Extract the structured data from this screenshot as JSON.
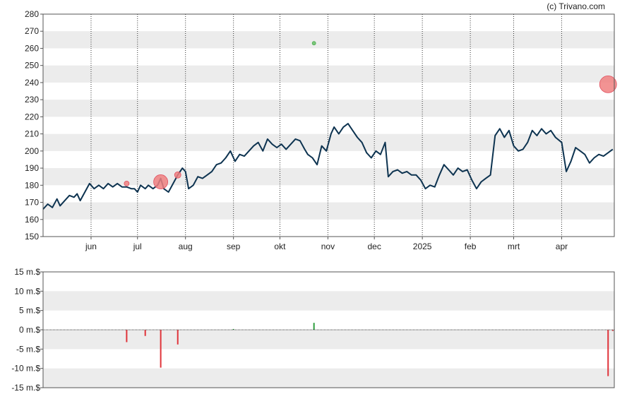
{
  "copyright": "(c) Trivano.com",
  "chart_data": [
    {
      "type": "line",
      "series_color": "#0d3350",
      "ylim": [
        150,
        280
      ],
      "y_ticks": [
        150,
        160,
        170,
        180,
        190,
        200,
        210,
        220,
        230,
        240,
        250,
        260,
        270,
        280
      ],
      "grid": "alternating horizontal bands, dotted vertical month lines",
      "x_range": [
        "2024-05-01",
        "2025-05-05"
      ],
      "x_ticks": [
        {
          "date": "2024-06-01",
          "label": "jun"
        },
        {
          "date": "2024-07-01",
          "label": "jul"
        },
        {
          "date": "2024-08-01",
          "label": "aug"
        },
        {
          "date": "2024-09-01",
          "label": "sep"
        },
        {
          "date": "2024-10-01",
          "label": "okt"
        },
        {
          "date": "2024-11-01",
          "label": "nov"
        },
        {
          "date": "2024-12-01",
          "label": "dec"
        },
        {
          "date": "2025-01-01",
          "label": "2025"
        },
        {
          "date": "2025-02-01",
          "label": "feb"
        },
        {
          "date": "2025-03-01",
          "label": "mrt"
        },
        {
          "date": "2025-04-01",
          "label": "apr"
        }
      ],
      "price": [
        [
          "2024-05-01",
          166
        ],
        [
          "2024-05-04",
          169
        ],
        [
          "2024-05-07",
          167
        ],
        [
          "2024-05-10",
          172
        ],
        [
          "2024-05-12",
          168
        ],
        [
          "2024-05-15",
          171
        ],
        [
          "2024-05-18",
          174
        ],
        [
          "2024-05-21",
          173
        ],
        [
          "2024-05-23",
          175
        ],
        [
          "2024-05-25",
          171
        ],
        [
          "2024-05-28",
          176
        ],
        [
          "2024-05-31",
          181
        ],
        [
          "2024-06-03",
          178
        ],
        [
          "2024-06-06",
          180
        ],
        [
          "2024-06-09",
          178
        ],
        [
          "2024-06-12",
          181
        ],
        [
          "2024-06-15",
          179
        ],
        [
          "2024-06-18",
          181
        ],
        [
          "2024-06-21",
          179
        ],
        [
          "2024-06-24",
          179
        ],
        [
          "2024-06-27",
          178
        ],
        [
          "2024-06-29",
          178
        ],
        [
          "2024-07-01",
          176
        ],
        [
          "2024-07-03",
          180
        ],
        [
          "2024-07-06",
          178
        ],
        [
          "2024-07-08",
          180
        ],
        [
          "2024-07-11",
          178
        ],
        [
          "2024-07-14",
          180
        ],
        [
          "2024-07-16",
          184
        ],
        [
          "2024-07-18",
          178
        ],
        [
          "2024-07-21",
          176
        ],
        [
          "2024-07-24",
          181
        ],
        [
          "2024-07-27",
          186
        ],
        [
          "2024-07-30",
          190
        ],
        [
          "2024-08-01",
          188
        ],
        [
          "2024-08-03",
          178
        ],
        [
          "2024-08-06",
          180
        ],
        [
          "2024-08-09",
          185
        ],
        [
          "2024-08-12",
          184
        ],
        [
          "2024-08-15",
          186
        ],
        [
          "2024-08-18",
          188
        ],
        [
          "2024-08-21",
          192
        ],
        [
          "2024-08-24",
          193
        ],
        [
          "2024-08-27",
          196
        ],
        [
          "2024-08-30",
          200
        ],
        [
          "2024-09-02",
          194
        ],
        [
          "2024-09-05",
          198
        ],
        [
          "2024-09-08",
          197
        ],
        [
          "2024-09-11",
          200
        ],
        [
          "2024-09-14",
          203
        ],
        [
          "2024-09-17",
          205
        ],
        [
          "2024-09-20",
          200
        ],
        [
          "2024-09-23",
          207
        ],
        [
          "2024-09-26",
          204
        ],
        [
          "2024-09-29",
          202
        ],
        [
          "2024-10-02",
          204
        ],
        [
          "2024-10-05",
          201
        ],
        [
          "2024-10-08",
          204
        ],
        [
          "2024-10-11",
          207
        ],
        [
          "2024-10-14",
          206
        ],
        [
          "2024-10-17",
          201
        ],
        [
          "2024-10-19",
          198
        ],
        [
          "2024-10-22",
          196
        ],
        [
          "2024-10-25",
          192
        ],
        [
          "2024-10-28",
          203
        ],
        [
          "2024-10-31",
          200
        ],
        [
          "2024-11-03",
          210
        ],
        [
          "2024-11-05",
          214
        ],
        [
          "2024-11-08",
          210
        ],
        [
          "2024-11-11",
          214
        ],
        [
          "2024-11-14",
          216
        ],
        [
          "2024-11-17",
          212
        ],
        [
          "2024-11-20",
          208
        ],
        [
          "2024-11-23",
          205
        ],
        [
          "2024-11-26",
          199
        ],
        [
          "2024-11-29",
          196
        ],
        [
          "2024-12-02",
          200
        ],
        [
          "2024-12-05",
          198
        ],
        [
          "2024-12-08",
          205
        ],
        [
          "2024-12-10",
          185
        ],
        [
          "2024-12-13",
          188
        ],
        [
          "2024-12-16",
          189
        ],
        [
          "2024-12-19",
          187
        ],
        [
          "2024-12-22",
          188
        ],
        [
          "2024-12-25",
          186
        ],
        [
          "2024-12-28",
          186
        ],
        [
          "2024-12-31",
          183
        ],
        [
          "2025-01-03",
          178
        ],
        [
          "2025-01-06",
          180
        ],
        [
          "2025-01-09",
          179
        ],
        [
          "2025-01-12",
          186
        ],
        [
          "2025-01-15",
          192
        ],
        [
          "2025-01-18",
          189
        ],
        [
          "2025-01-21",
          186
        ],
        [
          "2025-01-24",
          190
        ],
        [
          "2025-01-27",
          188
        ],
        [
          "2025-01-30",
          189
        ],
        [
          "2025-02-02",
          183
        ],
        [
          "2025-02-05",
          178
        ],
        [
          "2025-02-08",
          182
        ],
        [
          "2025-02-11",
          184
        ],
        [
          "2025-02-14",
          186
        ],
        [
          "2025-02-17",
          209
        ],
        [
          "2025-02-20",
          213
        ],
        [
          "2025-02-23",
          208
        ],
        [
          "2025-02-26",
          212
        ],
        [
          "2025-03-01",
          203
        ],
        [
          "2025-03-04",
          200
        ],
        [
          "2025-03-07",
          201
        ],
        [
          "2025-03-10",
          205
        ],
        [
          "2025-03-13",
          212
        ],
        [
          "2025-03-16",
          209
        ],
        [
          "2025-03-19",
          213
        ],
        [
          "2025-03-22",
          210
        ],
        [
          "2025-03-25",
          212
        ],
        [
          "2025-03-28",
          208
        ],
        [
          "2025-04-01",
          205
        ],
        [
          "2025-04-04",
          188
        ],
        [
          "2025-04-07",
          194
        ],
        [
          "2025-04-10",
          202
        ],
        [
          "2025-04-13",
          200
        ],
        [
          "2025-04-16",
          198
        ],
        [
          "2025-04-19",
          193
        ],
        [
          "2025-04-22",
          196
        ],
        [
          "2025-04-25",
          198
        ],
        [
          "2025-04-28",
          197
        ],
        [
          "2025-05-01",
          199
        ],
        [
          "2025-05-04",
          201
        ]
      ],
      "markers": [
        {
          "date": "2024-06-24",
          "value": 181,
          "type": "sell",
          "size": 3.5,
          "color": "#f08080"
        },
        {
          "date": "2024-07-16",
          "value": 182,
          "type": "sell",
          "size": 10,
          "color": "#f08080"
        },
        {
          "date": "2024-07-27",
          "value": 186,
          "type": "sell",
          "size": 4.5,
          "color": "#f08080"
        },
        {
          "date": "2024-10-23",
          "value": 263,
          "type": "buy",
          "size": 2.5,
          "color": "#6abf69"
        },
        {
          "date": "2025-05-01",
          "value": 239,
          "type": "sell",
          "size": 12,
          "color": "#f08080"
        }
      ]
    },
    {
      "type": "bar",
      "ylim": [
        -15,
        15
      ],
      "y_ticks": [
        "-15 m.$",
        "-10 m.$",
        "-5 m.$",
        "0 m.$",
        "5 m.$",
        "10 m.$",
        "15 m.$"
      ],
      "y_tick_values": [
        -15,
        -10,
        -5,
        0,
        5,
        10,
        15
      ],
      "colors": {
        "positive": "#2e9e3e",
        "negative": "#e0333a"
      },
      "bars": [
        {
          "date": "2024-06-24",
          "value": -3.2
        },
        {
          "date": "2024-07-06",
          "value": -1.6
        },
        {
          "date": "2024-07-16",
          "value": -9.8
        },
        {
          "date": "2024-07-27",
          "value": -3.8
        },
        {
          "date": "2024-09-01",
          "value": 0.2
        },
        {
          "date": "2024-10-23",
          "value": 1.8
        },
        {
          "date": "2025-05-01",
          "value": -12.0
        },
        {
          "date": "2025-05-04",
          "value": -0.3
        }
      ]
    }
  ]
}
